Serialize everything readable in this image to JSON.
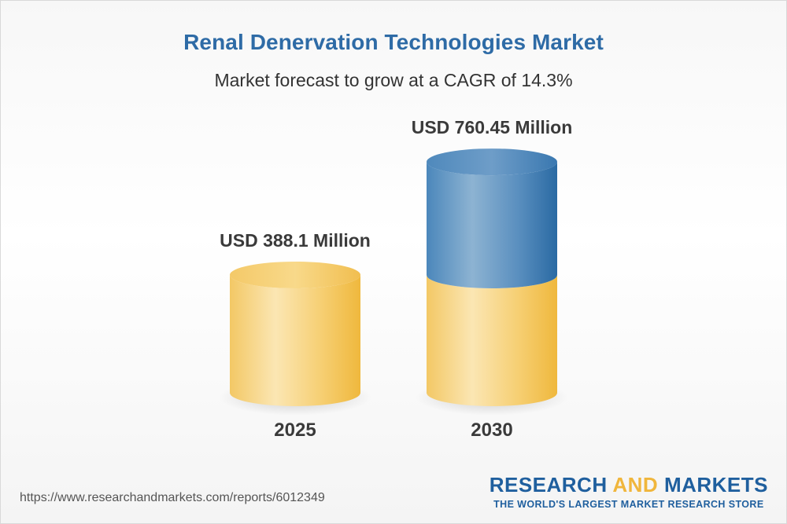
{
  "header": {
    "title": "Renal Denervation Technologies Market",
    "subtitle": "Market forecast to grow at a CAGR of 14.3%"
  },
  "chart_data": {
    "type": "bar",
    "style": "3d-cylinder",
    "categories": [
      "2025",
      "2030"
    ],
    "values": [
      388.1,
      760.45
    ],
    "value_labels": [
      "USD 388.1 Million",
      "USD 760.45 Million"
    ],
    "unit": "USD Million",
    "cagr_percent": 14.3,
    "colors": {
      "base": "#f2c14e",
      "growth": "#3f7fb5"
    },
    "grid": false,
    "legend": "none"
  },
  "footer": {
    "url": "https://www.researchandmarkets.com/reports/6012349",
    "brand_part1": "RESEARCH ",
    "brand_accent": "AND",
    "brand_part2": " MARKETS",
    "tagline": "THE WORLD'S LARGEST MARKET RESEARCH STORE"
  }
}
